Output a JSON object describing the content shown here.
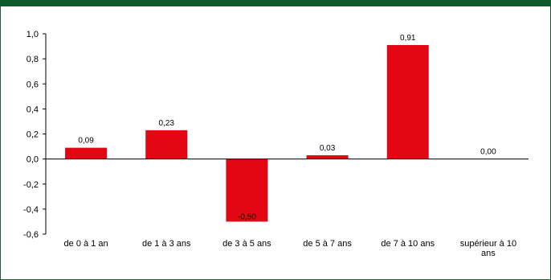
{
  "colors": {
    "bar": "#e30613",
    "header": "#0e5a2e",
    "frame": "#1f5c36",
    "axis": "#000000"
  },
  "chart_data": {
    "type": "bar",
    "categories": [
      [
        "de 0 à 1 an"
      ],
      [
        "de 1 à 3 ans"
      ],
      [
        "de 3 à 5 ans"
      ],
      [
        "de 5 à 7 ans"
      ],
      [
        "de 7 à 10 ans"
      ],
      [
        "supérieur à 10",
        "ans"
      ]
    ],
    "values": [
      0.09,
      0.23,
      -0.5,
      0.03,
      0.91,
      0.0
    ],
    "data_labels": [
      "0,09",
      "0,23",
      "-0,50",
      "0,03",
      "0,91",
      "0,00"
    ],
    "y_ticks": [
      1.0,
      0.8,
      0.6,
      0.4,
      0.2,
      0.0,
      -0.2,
      -0.4,
      -0.6
    ],
    "y_tick_labels": [
      "1,0",
      "0,8",
      "0,6",
      "0,4",
      "0,2",
      "0,0",
      "-0,2",
      "-0,4",
      "-0,6"
    ],
    "ylim": [
      -0.6,
      1.0
    ],
    "title": "",
    "xlabel": "",
    "ylabel": "",
    "grid": false,
    "legend": "none"
  }
}
